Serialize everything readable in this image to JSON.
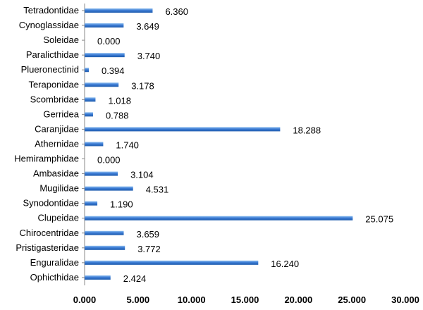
{
  "chart_data": {
    "type": "bar",
    "orientation": "horizontal",
    "categories": [
      "Tetradontidae",
      "Cynoglassidae",
      "Soleidae",
      "Paralicthidae",
      "Plueronectinid",
      "Teraponidae",
      "Scombridae",
      "Gerridea",
      "Caranjidae",
      "Athernidae",
      "Hemiramphidae",
      "Ambasidae",
      "Mugilidae",
      "Synodontidae",
      "Clupeidae",
      "Chirocentridae",
      "Pristigasteridae",
      "Enguralidae",
      "Ophicthidae"
    ],
    "values": [
      6.36,
      3.649,
      0.0,
      3.74,
      0.394,
      3.178,
      1.018,
      0.788,
      18.288,
      1.74,
      0.0,
      3.104,
      4.531,
      1.19,
      25.075,
      3.659,
      3.772,
      16.24,
      2.424
    ],
    "value_labels": [
      "6.360",
      "3.649",
      "0.000",
      "3.740",
      "0.394",
      "3.178",
      "1.018",
      "0.788",
      "18.288",
      "1.740",
      "0.000",
      "3.104",
      "4.531",
      "1.190",
      "25.075",
      "3.659",
      "3.772",
      "16.240",
      "2.424"
    ],
    "xlim": [
      0,
      30
    ],
    "xticks": [
      0,
      5,
      10,
      15,
      20,
      25,
      30
    ],
    "xtick_labels": [
      "0.000",
      "5.000",
      "10.000",
      "15.000",
      "20.000",
      "25.000",
      "30.000"
    ],
    "title": "",
    "xlabel": "",
    "ylabel": "",
    "grid": false,
    "legend": "none",
    "colors": {
      "bar": "#3b7bd4",
      "bar_light": "#8fbff0",
      "bar_dark": "#1f5cad",
      "axis": "#888888"
    }
  }
}
